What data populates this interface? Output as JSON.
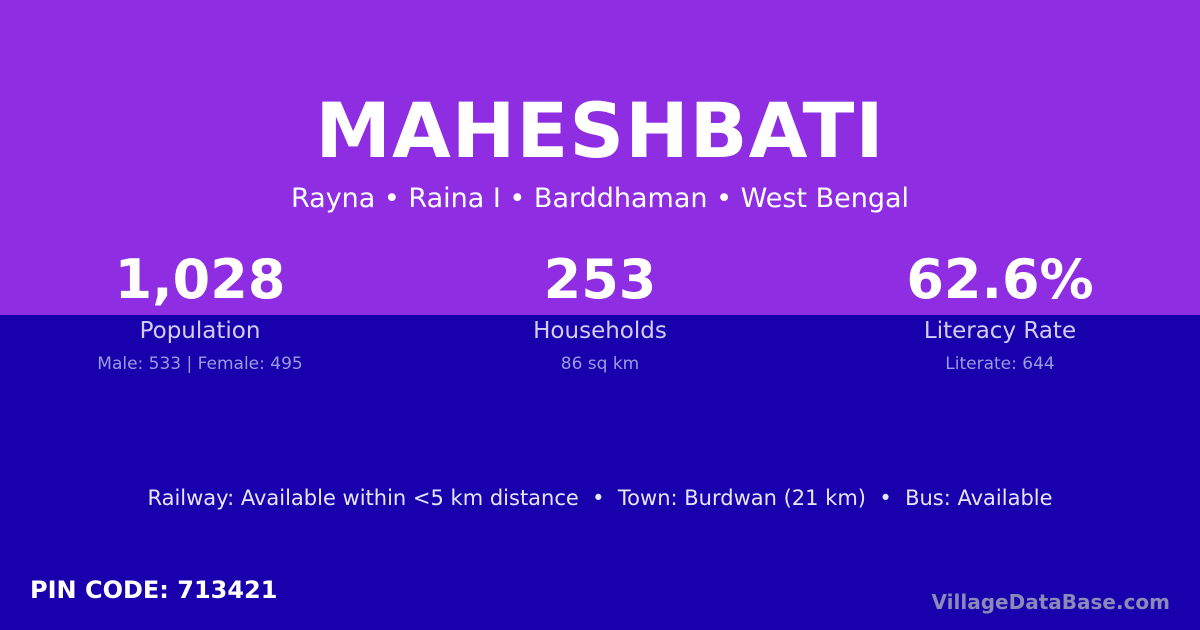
{
  "village": "MAHESHBATI",
  "location": "Rayna • Raina I • Barddhaman • West Bengal",
  "stats": [
    {
      "value": "1,028",
      "label": "Population",
      "detail": "Male: 533 | Female: 495"
    },
    {
      "value": "253",
      "label": "Households",
      "detail": "86 sq km"
    },
    {
      "value": "62.6%",
      "label": "Literacy Rate",
      "detail": "Literate: 644"
    }
  ],
  "facts": "Railway: Available within <5 km distance  •  Town: Burdwan (21 km)  •  Bus: Available",
  "pin": "PIN CODE: 713421",
  "brand": "VillageDataBase.com",
  "colors": {
    "top": "#8e2de2",
    "bottom": "#1800ad"
  }
}
